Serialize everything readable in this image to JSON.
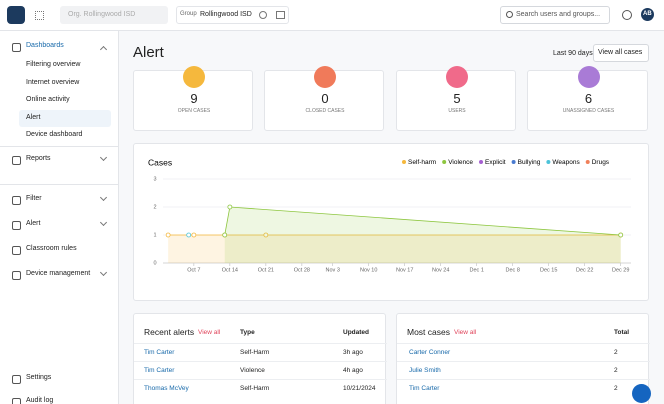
{
  "topbar": {
    "org": "Org. Rollingwood ISD",
    "group_label": "Group",
    "group_value": "Rollingwood ISD",
    "search": "Search users and groups...",
    "avatar": "AB"
  },
  "sidebar": {
    "dashboards": {
      "label": "Dashboards",
      "items": [
        "Filtering overview",
        "Internet overview",
        "Online activity",
        "Alert",
        "Device dashboard"
      ]
    },
    "nav": [
      "Reports",
      "Filter",
      "Alert",
      "Classroom rules",
      "Device management"
    ],
    "footer": [
      "Settings",
      "Audit log"
    ]
  },
  "page": {
    "title": "Alert",
    "range": "Last 90 days",
    "button": "View all cases"
  },
  "stats": [
    {
      "value": 9,
      "label": "OPEN CASES",
      "color": "#f5b83d"
    },
    {
      "value": 0,
      "label": "CLOSED CASES",
      "color": "#f07a5a"
    },
    {
      "value": 5,
      "label": "USERS",
      "color": "#f06a8a"
    },
    {
      "value": 6,
      "label": "UNASSIGNED CASES",
      "color": "#a97bd6"
    }
  ],
  "chart_data": {
    "type": "line",
    "title": "Cases",
    "xlim": [
      "Oct 1",
      "Dec 31"
    ],
    "xticks": [
      "Oct 7",
      "Oct 14",
      "Oct 21",
      "Oct 28",
      "Nov 3",
      "Nov 10",
      "Nov 17",
      "Nov 24",
      "Dec 1",
      "Dec 8",
      "Dec 15",
      "Dec 22",
      "Dec 29"
    ],
    "ylim": [
      0,
      3
    ],
    "yticks": [
      0,
      1,
      2,
      3
    ],
    "grid": true,
    "series": [
      {
        "name": "Self-harm",
        "color": "#f5b83d",
        "x": [
          "Oct 2",
          "Oct 7",
          "Oct 13",
          "Oct 21",
          "Dec 29"
        ],
        "values": [
          1,
          1,
          1,
          1,
          1
        ]
      },
      {
        "name": "Violence",
        "color": "#8dc63f",
        "x": [
          "Oct 13",
          "Oct 14",
          "Dec 29"
        ],
        "values": [
          1,
          2,
          1
        ]
      },
      {
        "name": "Explicit",
        "color": "#a55fd0",
        "x": [],
        "values": []
      },
      {
        "name": "Bullying",
        "color": "#4a7bd0",
        "x": [],
        "values": []
      },
      {
        "name": "Weapons",
        "color": "#4cc3d9",
        "x": [
          "Oct 6"
        ],
        "values": [
          1
        ]
      },
      {
        "name": "Drugs",
        "color": "#f0805a",
        "x": [],
        "values": []
      }
    ]
  },
  "recent_alerts": {
    "title": "Recent alerts",
    "link": "View all",
    "columns": [
      "Type",
      "Updated"
    ],
    "rows": [
      [
        "Tim Carter",
        "Self-Harm",
        "3h ago"
      ],
      [
        "Tim Carter",
        "Violence",
        "4h ago"
      ],
      [
        "Thomas McVey",
        "Self-Harm",
        "10/21/2024"
      ]
    ]
  },
  "most_cases": {
    "title": "Most cases",
    "link": "View all",
    "columns": [
      "Total"
    ],
    "rows": [
      [
        "Carter Conner",
        2
      ],
      [
        "Julie Smith",
        2
      ],
      [
        "Tim Carter",
        2
      ]
    ]
  }
}
